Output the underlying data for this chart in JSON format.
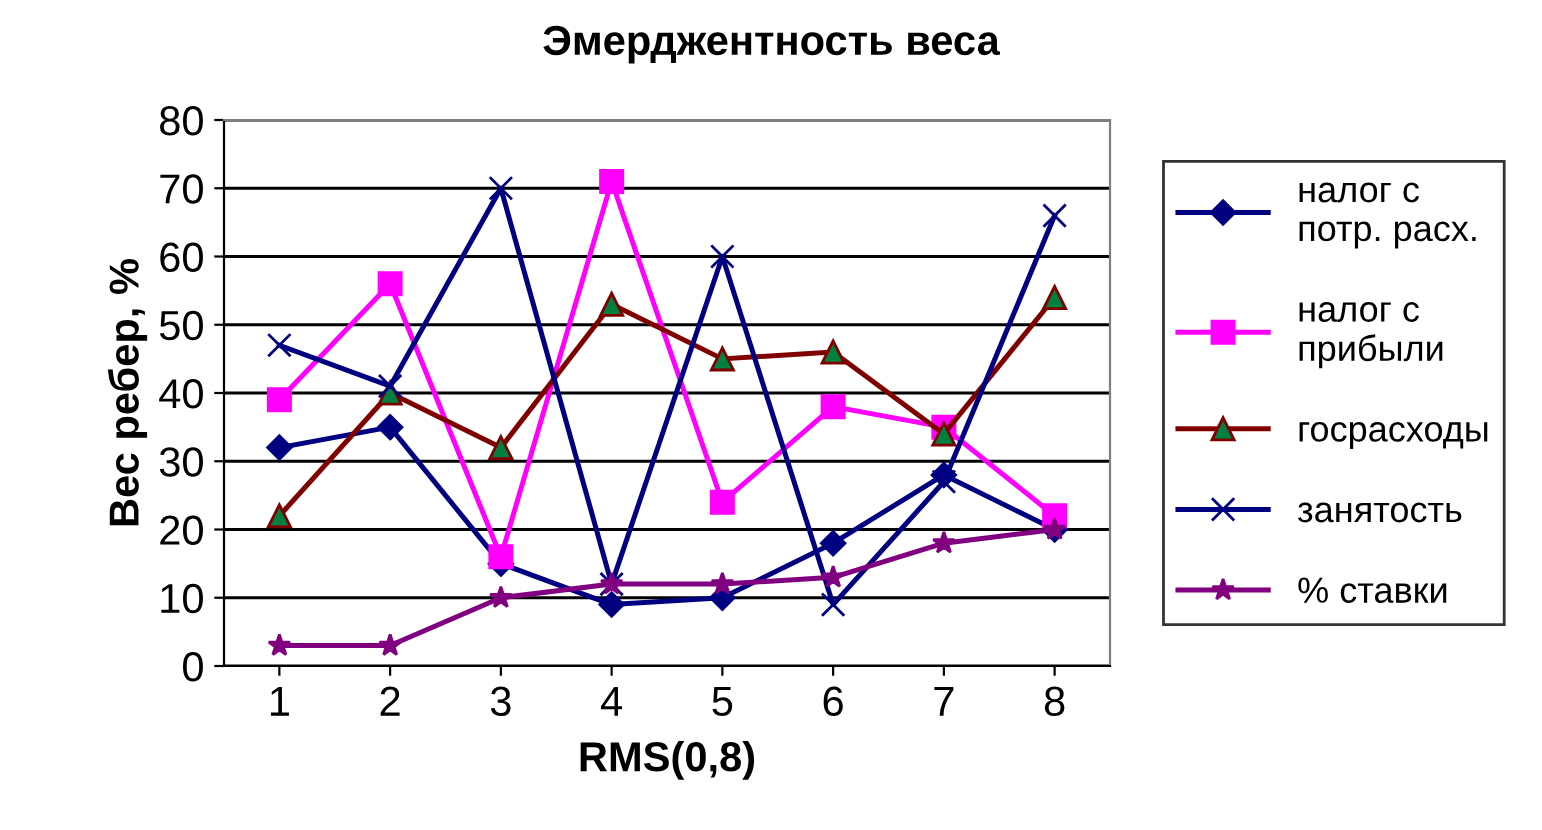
{
  "chart_data": {
    "type": "line",
    "title": "Эмерджентность веса",
    "xlabel": "RMS(0,8)",
    "ylabel": "Вес ребер, %",
    "categories": [
      "1",
      "2",
      "3",
      "4",
      "5",
      "6",
      "7",
      "8"
    ],
    "series": [
      {
        "name": "налог с\nпотр. расх.",
        "color": "#000080",
        "marker": "diamond",
        "values": [
          32,
          35,
          15,
          9,
          10,
          18,
          28,
          20
        ]
      },
      {
        "name": "налог с\nприбыли",
        "color": "#ff00ff",
        "marker": "square",
        "values": [
          39,
          56,
          16,
          71,
          24,
          38,
          35,
          22
        ]
      },
      {
        "name": "госрасходы",
        "color": "#800000",
        "marker": "triangle",
        "values": [
          22,
          40,
          32,
          53,
          45,
          46,
          34,
          54
        ]
      },
      {
        "name": "занятость",
        "color": "#000080",
        "marker": "cross",
        "values": [
          47,
          41,
          70,
          12,
          60,
          9,
          27,
          66
        ]
      },
      {
        "name": "% ставки",
        "color": "#800080",
        "marker": "star",
        "values": [
          3,
          3,
          10,
          12,
          12,
          13,
          18,
          20
        ]
      }
    ],
    "ylim": [
      0,
      80
    ],
    "yticks": [
      0,
      10,
      20,
      30,
      40,
      50,
      60,
      70,
      80
    ],
    "grid": "y",
    "legend": "right"
  }
}
